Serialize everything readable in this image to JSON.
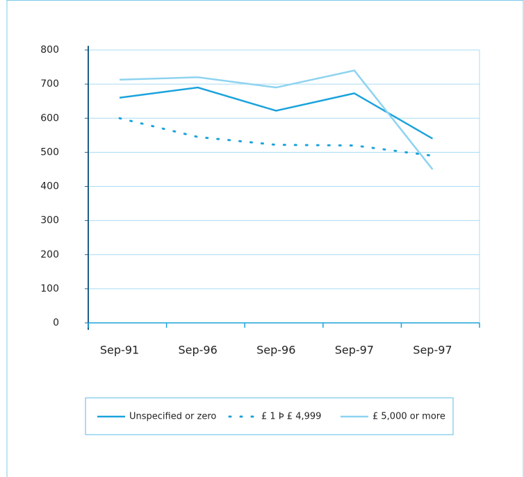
{
  "chart_data": {
    "type": "line",
    "categories": [
      "Sep-91",
      "Sep-96",
      "Sep-96",
      "Sep-97",
      "Sep-97"
    ],
    "series": [
      {
        "name": "Unspecified or zero",
        "color": "#1aa3dc",
        "style": "solid",
        "values": [
          660,
          690,
          622,
          673,
          540
        ]
      },
      {
        "name": "£ 1 Þ £ 4,999",
        "color": "#1aa3dc",
        "style": "dotted",
        "values": [
          600,
          545,
          522,
          520,
          490
        ]
      },
      {
        "name": "£ 5,000 or more",
        "color": "#8dd3f0",
        "style": "solid",
        "values": [
          713,
          720,
          690,
          740,
          450
        ]
      }
    ],
    "ylim": [
      0,
      800
    ],
    "yticks": [
      0,
      100,
      200,
      300,
      400,
      500,
      600,
      700,
      800
    ],
    "grid": true,
    "legend": "bottom"
  }
}
